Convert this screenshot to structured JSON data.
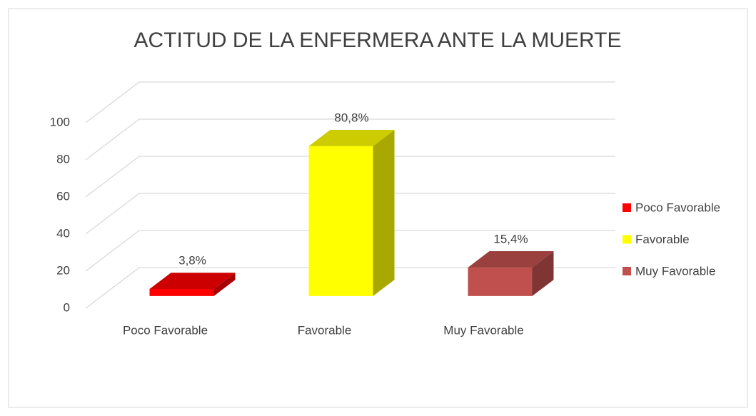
{
  "chart_data": {
    "type": "bar3d",
    "title": "ACTITUD DE LA ENFERMERA ANTE LA MUERTE",
    "categories": [
      "Poco Favorable",
      "Favorable",
      "Muy Favorable"
    ],
    "values": [
      3.8,
      80.8,
      15.4
    ],
    "value_labels": [
      "3,8%",
      "80,8%",
      "15,4%"
    ],
    "colors": [
      "#ff0000",
      "#ffff00",
      "#c0504d"
    ],
    "ylim": [
      0,
      100
    ],
    "yticks": [
      0,
      20,
      40,
      60,
      80,
      100
    ],
    "grid": true,
    "legend": "right"
  }
}
